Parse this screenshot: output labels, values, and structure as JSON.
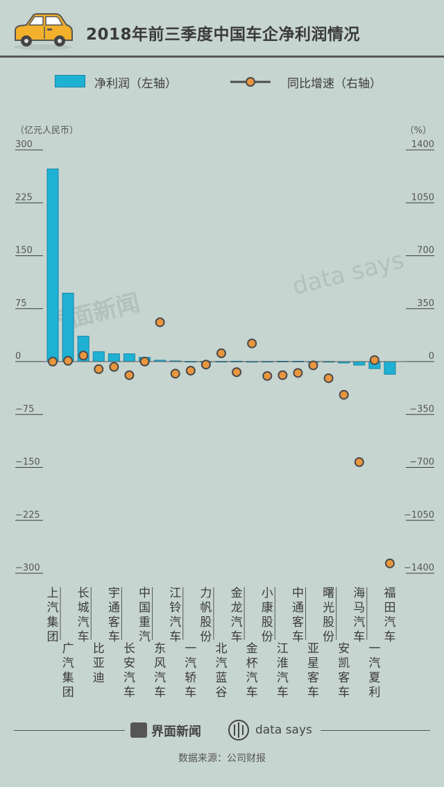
{
  "header": {
    "title": "2018年前三季度中国车企净利润情况"
  },
  "legend": {
    "bar_label": "净利润（左轴）",
    "line_label": "同比增速（右轴）"
  },
  "watermark": {
    "left": "界面新闻",
    "right": "data says"
  },
  "footer": {
    "brand1": "界面新闻",
    "brand2": "data says",
    "source": "数据来源：公司财报"
  },
  "colors": {
    "bar": "#1fb1d4",
    "bar_edge": "#1685a3",
    "dot": "#e9963f",
    "dot_edge": "#4a4a4a",
    "background": "#c7d5d1"
  },
  "chart_data": {
    "type": "bar",
    "left_axis": {
      "unit_label": "（亿元人民币）",
      "ticks": [
        300,
        225,
        150,
        75,
        0,
        -75,
        -150,
        -225,
        -300
      ],
      "tick_labels": [
        "300",
        "225",
        "150",
        "75",
        "0",
        "−75",
        "−150",
        "−225",
        "−300"
      ],
      "range": [
        -300,
        300
      ]
    },
    "right_axis": {
      "unit_label": "（%）",
      "ticks": [
        1400,
        1050,
        700,
        350,
        0,
        -350,
        -700,
        -1050,
        -1400
      ],
      "tick_labels": [
        "1400",
        "1050",
        "700",
        "350",
        "0",
        "−350",
        "−700",
        "−1050",
        "−1400"
      ],
      "range": [
        -1400,
        1400
      ]
    },
    "categories": [
      "上汽集团",
      "广汽集团",
      "长城汽车",
      "比亚迪",
      "宇通客车",
      "长安汽车",
      "中国重汽",
      "东风汽车",
      "江铃汽车",
      "一汽轿车",
      "力帆股份",
      "北汽蓝谷",
      "金龙汽车",
      "金杯汽车",
      "小康股份",
      "江淮汽车",
      "中通客车",
      "亚星客车",
      "曙光股份",
      "安凯客车",
      "海马汽车",
      "一汽夏利",
      "福田汽车"
    ],
    "series": [
      {
        "name": "净利润",
        "axis": "left",
        "kind": "bar",
        "values": [
          273,
          97,
          36,
          14,
          11,
          11,
          6,
          2,
          1,
          0.3,
          0.2,
          0.3,
          0.5,
          0.2,
          0.3,
          0.5,
          0.5,
          0.1,
          0.2,
          -2,
          -5,
          -10,
          -18
        ]
      },
      {
        "name": "同比增速",
        "axis": "right",
        "kind": "dot",
        "values": [
          0,
          5,
          40,
          -50,
          -35,
          -90,
          0,
          260,
          -80,
          -60,
          -20,
          55,
          -70,
          120,
          -95,
          -90,
          -75,
          -25,
          -110,
          -220,
          -665,
          10,
          -1335
        ]
      }
    ]
  }
}
